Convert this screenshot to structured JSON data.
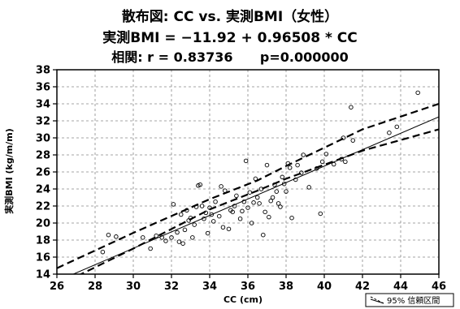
{
  "chart_data": {
    "type": "scatter",
    "title": "散布図: CC vs. 実測BMI（女性）",
    "equation": "実測BMI = −11.92 + 0.96508 * CC",
    "correlation": "相関: r = 0.83736      p=0.000000",
    "xlabel": "CC (cm)",
    "ylabel": "実測BMI (kg/m/m)",
    "xlim": [
      26,
      46
    ],
    "ylim": [
      14,
      38
    ],
    "x_ticks": [
      "26",
      "28",
      "30",
      "32",
      "34",
      "36",
      "38",
      "40",
      "42",
      "44",
      "46"
    ],
    "y_ticks": [
      "14",
      "16",
      "18",
      "20",
      "22",
      "24",
      "26",
      "28",
      "30",
      "32",
      "34",
      "36",
      "38"
    ],
    "grid": true,
    "legend": "95% 信頼区間",
    "regression": {
      "intercept": -11.92,
      "slope": 0.96508
    },
    "confidence_band": {
      "x": [
        26,
        30,
        34,
        36.5,
        38,
        42,
        46
      ],
      "upper": [
        14.7,
        18.85,
        22.8,
        25.0,
        26.7,
        31.0,
        34.0
      ],
      "lower": [
        12.6,
        17.0,
        21.6,
        23.8,
        25.2,
        28.5,
        31.0
      ]
    },
    "points": [
      [
        28.4,
        16.6
      ],
      [
        28.7,
        18.6
      ],
      [
        29.1,
        18.4
      ],
      [
        30.5,
        18.3
      ],
      [
        30.9,
        17.0
      ],
      [
        31.2,
        18.5
      ],
      [
        31.5,
        18.3
      ],
      [
        31.7,
        17.9
      ],
      [
        32.0,
        18.3
      ],
      [
        32.1,
        22.2
      ],
      [
        32.3,
        18.9
      ],
      [
        32.4,
        17.8
      ],
      [
        32.5,
        21.0
      ],
      [
        32.6,
        17.6
      ],
      [
        32.7,
        19.2
      ],
      [
        32.8,
        21.5
      ],
      [
        32.9,
        20.3
      ],
      [
        33.0,
        20.6
      ],
      [
        33.1,
        18.3
      ],
      [
        33.2,
        19.8
      ],
      [
        33.3,
        21.9
      ],
      [
        33.4,
        24.4
      ],
      [
        33.5,
        24.5
      ],
      [
        33.6,
        22.0
      ],
      [
        33.7,
        20.5
      ],
      [
        33.8,
        21.2
      ],
      [
        33.9,
        18.8
      ],
      [
        34.0,
        21.8
      ],
      [
        34.1,
        21.0
      ],
      [
        34.2,
        20.2
      ],
      [
        34.3,
        22.5
      ],
      [
        34.5,
        20.8
      ],
      [
        34.6,
        24.3
      ],
      [
        34.7,
        19.5
      ],
      [
        34.8,
        23.8
      ],
      [
        35.0,
        19.3
      ],
      [
        35.1,
        21.5
      ],
      [
        35.2,
        21.3
      ],
      [
        35.3,
        22.0
      ],
      [
        35.4,
        23.2
      ],
      [
        35.6,
        20.5
      ],
      [
        35.7,
        21.4
      ],
      [
        35.8,
        22.5
      ],
      [
        35.9,
        27.3
      ],
      [
        36.0,
        21.8
      ],
      [
        36.1,
        23.6
      ],
      [
        36.2,
        20.0
      ],
      [
        36.3,
        22.4
      ],
      [
        36.4,
        25.2
      ],
      [
        36.5,
        23.0
      ],
      [
        36.6,
        22.3
      ],
      [
        36.7,
        24.0
      ],
      [
        36.8,
        18.6
      ],
      [
        36.9,
        21.3
      ],
      [
        37.0,
        26.8
      ],
      [
        37.1,
        20.7
      ],
      [
        37.2,
        22.6
      ],
      [
        37.3,
        23.0
      ],
      [
        37.4,
        24.5
      ],
      [
        37.5,
        23.7
      ],
      [
        37.6,
        22.3
      ],
      [
        37.7,
        21.9
      ],
      [
        37.8,
        25.4
      ],
      [
        37.9,
        24.6
      ],
      [
        38.0,
        23.7
      ],
      [
        38.1,
        27.0
      ],
      [
        38.2,
        26.5
      ],
      [
        38.3,
        20.6
      ],
      [
        38.5,
        25.1
      ],
      [
        38.6,
        26.8
      ],
      [
        38.8,
        25.9
      ],
      [
        38.9,
        28.0
      ],
      [
        39.2,
        24.2
      ],
      [
        39.6,
        26.4
      ],
      [
        39.8,
        21.1
      ],
      [
        39.9,
        27.2
      ],
      [
        40.1,
        28.1
      ],
      [
        40.5,
        26.9
      ],
      [
        40.9,
        27.5
      ],
      [
        41.0,
        30.0
      ],
      [
        41.1,
        27.2
      ],
      [
        41.4,
        33.6
      ],
      [
        41.5,
        29.7
      ],
      [
        43.4,
        30.6
      ],
      [
        43.8,
        31.3
      ],
      [
        44.9,
        35.3
      ]
    ]
  }
}
